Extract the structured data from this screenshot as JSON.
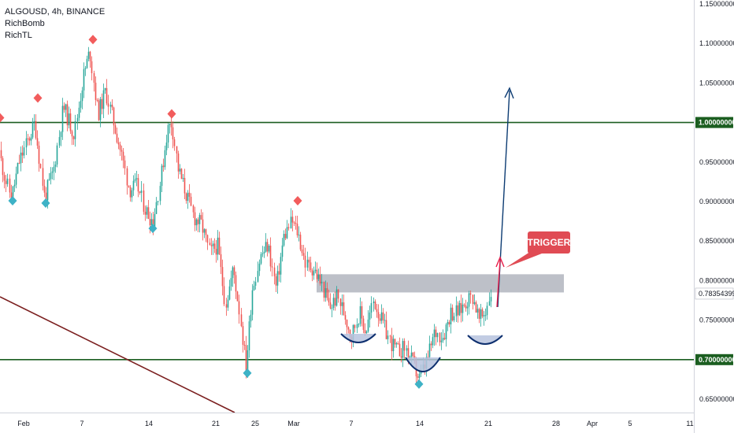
{
  "header": {
    "symbol_line": "ALGOUSD, 4h, BINANCE",
    "indicators": [
      "RichBomb",
      "RichTL"
    ]
  },
  "colors": {
    "up": "#26a69a",
    "down": "#ef5350",
    "support_line": "#1b5e20",
    "trendline": "#7b1f1f",
    "zone": "#b2b5be",
    "arrow_target": "#0d3c73",
    "arrow_trigger": "#e91e4a",
    "trigger_label": "#e04b54",
    "cup": "#0d2f6e",
    "cup_fill": "#b7c3de",
    "marker_top": "#f25c5c",
    "marker_bottom": "#3eb2c6",
    "price_tag": "#ffffff"
  },
  "chart_data": {
    "type": "candlestick",
    "y_axis": {
      "labels": [
        "1.15000000",
        "1.10000000",
        "1.05000000",
        "1.00000000",
        "0.95000000",
        "0.90000000",
        "0.85000000",
        "0.80000000",
        "0.75000000",
        "0.70000000",
        "0.65000000"
      ],
      "values": [
        1.15,
        1.1,
        1.05,
        1.0,
        0.95,
        0.9,
        0.85,
        0.8,
        0.75,
        0.7,
        0.65
      ],
      "range": [
        0.635,
        1.155
      ],
      "highlight": [
        {
          "value": 1.0,
          "label": "1.00000000",
          "style": "boxed"
        },
        {
          "value": 0.7835,
          "label": "0.78354399",
          "style": "current"
        },
        {
          "value": 0.7,
          "label": "0.70000000",
          "style": "boxed"
        }
      ]
    },
    "x_axis": {
      "labels": [
        "Feb",
        "7",
        "14",
        "21",
        "25",
        "Mar",
        "7",
        "14",
        "21",
        "28",
        "Apr",
        "5",
        "11"
      ]
    },
    "horizontal_lines": [
      1.0,
      0.7
    ],
    "resistance_zone": {
      "from": 0.785,
      "to": 0.808
    },
    "annotation": "TRIGGER",
    "price_path": [
      [
        0,
        0.965
      ],
      [
        8,
        0.93
      ],
      [
        16,
        0.905
      ],
      [
        26,
        0.95
      ],
      [
        36,
        0.975
      ],
      [
        46,
        1.0
      ],
      [
        58,
        0.905
      ],
      [
        70,
        0.94
      ],
      [
        82,
        1.02
      ],
      [
        96,
        0.985
      ],
      [
        108,
        1.06
      ],
      [
        116,
        1.09
      ],
      [
        126,
        1.01
      ],
      [
        136,
        1.04
      ],
      [
        146,
        1.0
      ],
      [
        156,
        0.96
      ],
      [
        166,
        0.915
      ],
      [
        176,
        0.92
      ],
      [
        186,
        0.89
      ],
      [
        196,
        0.875
      ],
      [
        206,
        0.93
      ],
      [
        214,
        0.99
      ],
      [
        220,
        1.0
      ],
      [
        228,
        0.94
      ],
      [
        238,
        0.91
      ],
      [
        248,
        0.88
      ],
      [
        258,
        0.87
      ],
      [
        268,
        0.835
      ],
      [
        278,
        0.845
      ],
      [
        288,
        0.77
      ],
      [
        298,
        0.815
      ],
      [
        306,
        0.76
      ],
      [
        314,
        0.69
      ],
      [
        322,
        0.79
      ],
      [
        332,
        0.83
      ],
      [
        342,
        0.845
      ],
      [
        352,
        0.79
      ],
      [
        362,
        0.855
      ],
      [
        372,
        0.875
      ],
      [
        380,
        0.86
      ],
      [
        390,
        0.82
      ],
      [
        400,
        0.815
      ],
      [
        410,
        0.795
      ],
      [
        420,
        0.765
      ],
      [
        430,
        0.78
      ],
      [
        440,
        0.755
      ],
      [
        448,
        0.73
      ],
      [
        458,
        0.76
      ],
      [
        466,
        0.735
      ],
      [
        476,
        0.775
      ],
      [
        486,
        0.75
      ],
      [
        496,
        0.725
      ],
      [
        506,
        0.71
      ],
      [
        516,
        0.715
      ],
      [
        526,
        0.695
      ],
      [
        534,
        0.675
      ],
      [
        544,
        0.7
      ],
      [
        554,
        0.735
      ],
      [
        564,
        0.73
      ],
      [
        574,
        0.76
      ],
      [
        584,
        0.76
      ],
      [
        594,
        0.775
      ],
      [
        602,
        0.78
      ],
      [
        610,
        0.75
      ],
      [
        618,
        0.76
      ],
      [
        624,
        0.785
      ]
    ],
    "top_markers": [
      [
        0,
        1.003
      ],
      [
        48,
        1.028
      ],
      [
        118,
        1.102
      ],
      [
        218,
        1.008
      ],
      [
        378,
        0.898
      ]
    ],
    "bottom_markers": [
      [
        16,
        0.905
      ],
      [
        58,
        0.902
      ],
      [
        194,
        0.87
      ],
      [
        314,
        0.687
      ],
      [
        532,
        0.673
      ]
    ]
  }
}
